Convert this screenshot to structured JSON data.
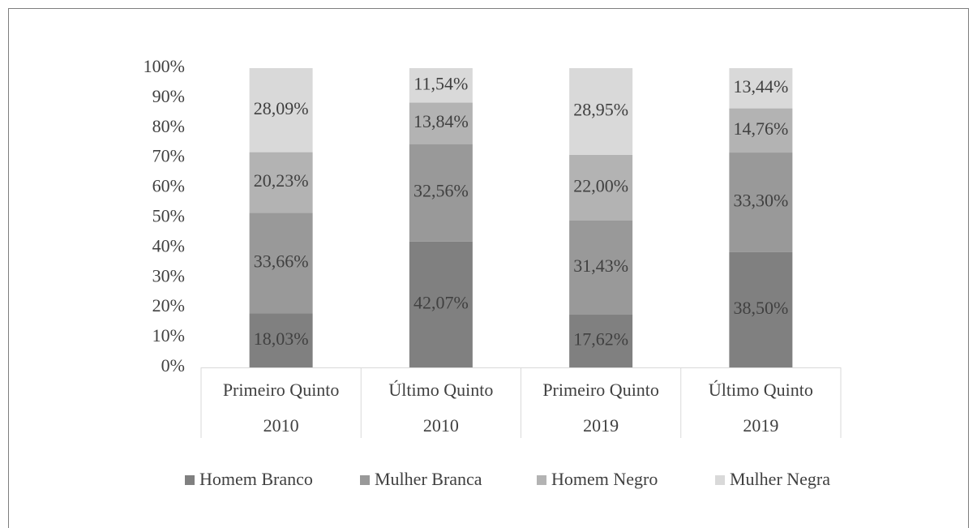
{
  "chart_data": {
    "type": "stacked_bar",
    "categories": [
      [
        "Primeiro Quinto",
        "2010"
      ],
      [
        "Último Quinto",
        "2010"
      ],
      [
        "Primeiro Quinto",
        "2019"
      ],
      [
        "Último Quinto",
        "2019"
      ]
    ],
    "series": [
      {
        "name": "Homem Branco",
        "color": "#808080",
        "values": [
          18.03,
          42.07,
          17.62,
          38.5
        ],
        "value_labels": [
          "18,03%",
          "42,07%",
          "17,62%",
          "38,50%"
        ]
      },
      {
        "name": "Mulher Branca",
        "color": "#999999",
        "values": [
          33.66,
          32.56,
          31.43,
          33.3
        ],
        "value_labels": [
          "33,66%",
          "32,56%",
          "31,43%",
          "33,30%"
        ]
      },
      {
        "name": "Homem Negro",
        "color": "#b3b3b3",
        "values": [
          20.23,
          13.84,
          22.0,
          14.76
        ],
        "value_labels": [
          "20,23%",
          "13,84%",
          "22,00%",
          "14,76%"
        ]
      },
      {
        "name": "Mulher Negra",
        "color": "#d9d9d9",
        "values": [
          28.09,
          11.54,
          28.95,
          13.44
        ],
        "value_labels": [
          "28,09%",
          "11,54%",
          "28,95%",
          "13,44%"
        ]
      }
    ],
    "ylim": [
      0,
      100
    ],
    "yticks": [
      {
        "value": 0,
        "label": "0%"
      },
      {
        "value": 10,
        "label": "10%"
      },
      {
        "value": 20,
        "label": "20%"
      },
      {
        "value": 30,
        "label": "30%"
      },
      {
        "value": 40,
        "label": "40%"
      },
      {
        "value": 50,
        "label": "50%"
      },
      {
        "value": 60,
        "label": "60%"
      },
      {
        "value": 70,
        "label": "70%"
      },
      {
        "value": 80,
        "label": "80%"
      },
      {
        "value": 90,
        "label": "90%"
      },
      {
        "value": 100,
        "label": "100%"
      }
    ],
    "legend": "bottom"
  }
}
